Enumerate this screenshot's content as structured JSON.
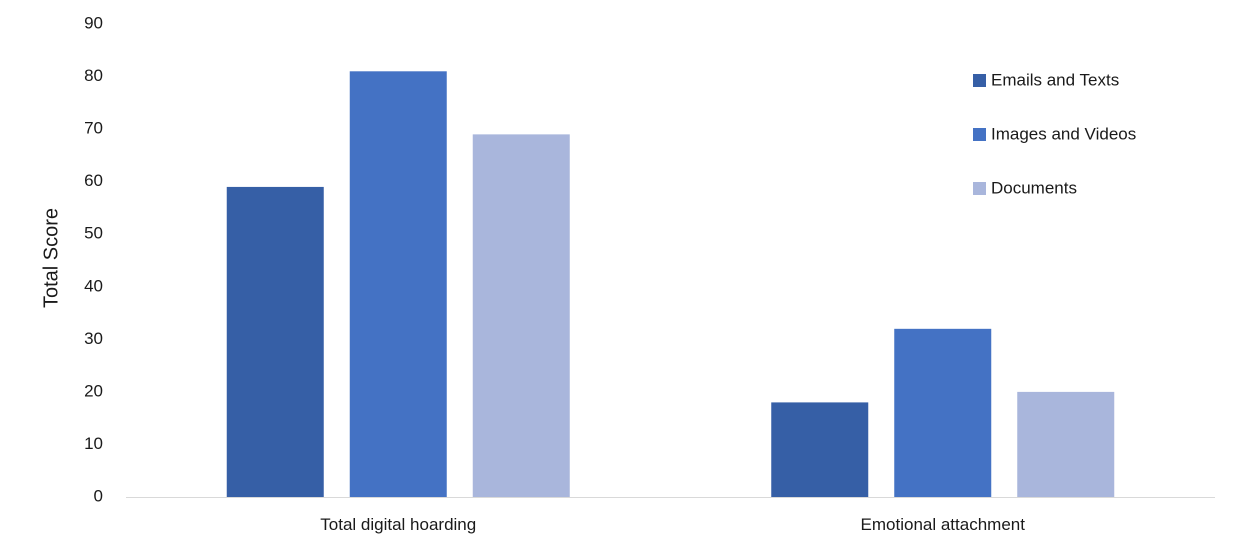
{
  "chart_data": {
    "type": "bar",
    "categories": [
      "Total digital hoarding",
      "Emotional attachment"
    ],
    "series": [
      {
        "name": "Emails and Texts",
        "values": [
          59,
          18
        ],
        "color": "#365fa6"
      },
      {
        "name": "Images and Videos",
        "values": [
          81,
          32
        ],
        "color": "#4472c4"
      },
      {
        "name": "Documents",
        "values": [
          69,
          20
        ],
        "color": "#a9b6dc"
      }
    ],
    "title": "",
    "xlabel": "",
    "ylabel": "Total Score",
    "ylim": [
      0,
      90
    ],
    "yticks": [
      0,
      10,
      20,
      30,
      40,
      50,
      60,
      70,
      80,
      90
    ],
    "grid": false,
    "legend_position": "top-right"
  }
}
